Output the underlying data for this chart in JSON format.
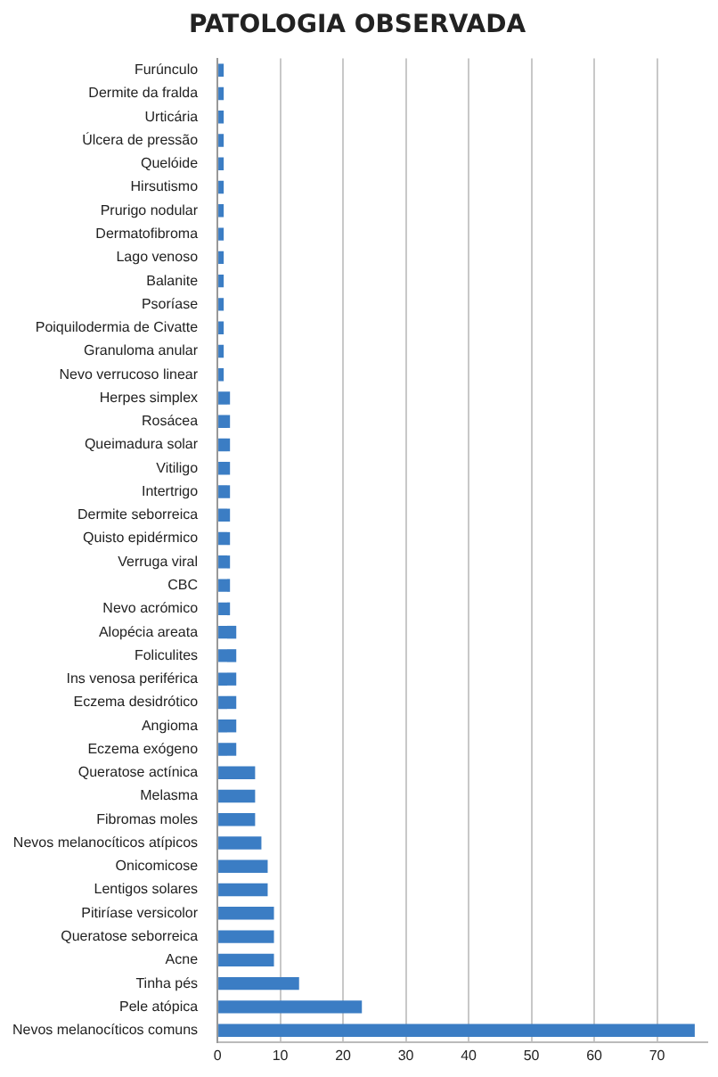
{
  "chart_data": {
    "type": "bar",
    "orientation": "horizontal",
    "title": "PATOLOGIA OBSERVADA",
    "categories": [
      "Furúnculo",
      "Dermite da fralda",
      "Urticária",
      "Úlcera de pressão",
      "Quelóide",
      "Hirsutismo",
      "Prurigo nodular",
      "Dermatofibroma",
      "Lago venoso",
      "Balanite",
      "Psoríase",
      "Poiquilodermia de Civatte",
      "Granuloma anular",
      "Nevo verrucoso linear",
      "Herpes simplex",
      "Rosácea",
      "Queimadura solar",
      "Vitiligo",
      "Intertrigo",
      "Dermite seborreica",
      "Quisto epidérmico",
      "Verruga viral",
      "CBC",
      "Nevo acrómico",
      "Alopécia areata",
      "Foliculites",
      "Ins venosa periférica",
      "Eczema desidrótico",
      "Angioma",
      "Eczema exógeno",
      "Queratose actínica",
      "Melasma",
      "Fibromas moles",
      "Nevos melanocíticos atípicos",
      "Onicomicose",
      "Lentigos solares",
      "Pitiríase versicolor",
      "Queratose seborreica",
      "Acne",
      "Tinha pés",
      "Pele atópica",
      "Nevos melanocíticos comuns"
    ],
    "values": [
      1,
      1,
      1,
      1,
      1,
      1,
      1,
      1,
      1,
      1,
      1,
      1,
      1,
      1,
      2,
      2,
      2,
      2,
      2,
      2,
      2,
      2,
      2,
      2,
      3,
      3,
      3,
      3,
      3,
      3,
      6,
      6,
      6,
      7,
      8,
      8,
      9,
      9,
      9,
      13,
      23,
      76
    ],
    "color": "#3b7dc4",
    "xlim": [
      0,
      78
    ],
    "xticks": [
      0,
      10,
      20,
      30,
      40,
      50,
      60,
      70
    ],
    "grid": "x",
    "legend": false
  }
}
